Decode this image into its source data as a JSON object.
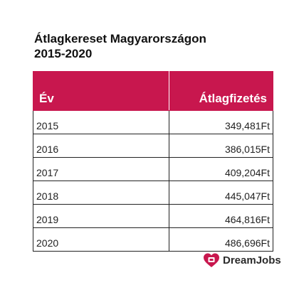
{
  "title": {
    "line1": "Átlagkereset Magyarországon",
    "line2": "2015-2020"
  },
  "table": {
    "headers": {
      "year": "Év",
      "salary": "Átlagfizetés"
    },
    "rows": [
      {
        "year": "2015",
        "salary": "349,481Ft"
      },
      {
        "year": "2016",
        "salary": "386,015Ft"
      },
      {
        "year": "2017",
        "salary": "409,204Ft"
      },
      {
        "year": "2018",
        "salary": "445,047Ft"
      },
      {
        "year": "2019",
        "salary": "464,816Ft"
      },
      {
        "year": "2020",
        "salary": "486,696Ft"
      }
    ]
  },
  "brand": {
    "name": "DreamJobs",
    "icon": "heart-logo-icon",
    "accent_color": "#c8174e"
  }
}
